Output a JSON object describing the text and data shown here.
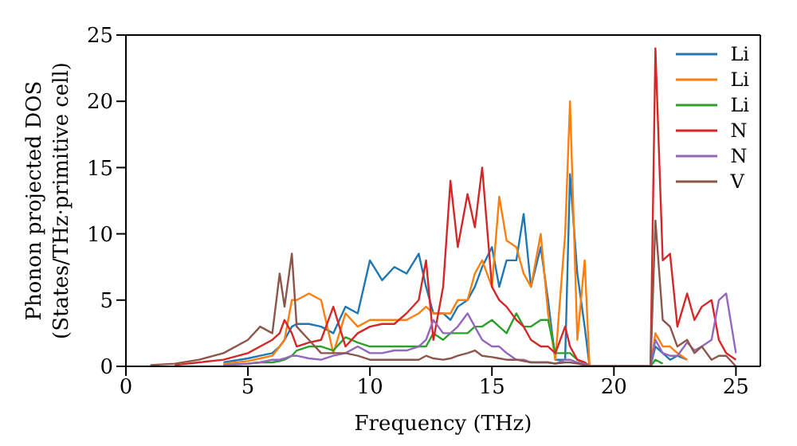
{
  "chart_data": {
    "type": "line",
    "xlabel": "Frequency (THz)",
    "ylabel": "Phonon projected DOS\n(States/THz·primitive cell)",
    "xlim": [
      0,
      26
    ],
    "xticks": [
      0,
      5,
      10,
      15,
      20,
      25
    ],
    "ylim": [
      0,
      25
    ],
    "yticks": [
      0,
      5,
      10,
      15,
      20,
      25
    ],
    "grid": false,
    "legend": "top right",
    "marker": "none",
    "line_style": "solid",
    "x": [
      1,
      2,
      3,
      4,
      5,
      5.5,
      6,
      6.3,
      6.5,
      6.8,
      7,
      7.5,
      8,
      8.5,
      9,
      9.5,
      10,
      10.5,
      11,
      11.5,
      12,
      12.3,
      12.6,
      13,
      13.3,
      13.6,
      14,
      14.3,
      14.6,
      15,
      15.3,
      15.6,
      16,
      16.3,
      16.6,
      17,
      17.3,
      17.6,
      18,
      18.2,
      18.5,
      18.8,
      19,
      21.5,
      21.7,
      22,
      22.3,
      22.6,
      23,
      23.3,
      23.6,
      24,
      24.3,
      24.6,
      25
    ],
    "series": [
      {
        "name": "Li",
        "color": "#1f77b4",
        "values": [
          null,
          null,
          null,
          0.3,
          0.6,
          0.8,
          1,
          1.5,
          2,
          3,
          3.2,
          3.2,
          3,
          2.5,
          4.5,
          4,
          8,
          6.5,
          7.5,
          7,
          8.5,
          6,
          4,
          4,
          3.5,
          4.5,
          5,
          6,
          7.5,
          9,
          6,
          8,
          8,
          11.5,
          6,
          9,
          5,
          0.5,
          0.5,
          14.5,
          7,
          3,
          0,
          0,
          1.5,
          1,
          0.5,
          0.8,
          0.5,
          null,
          null,
          null,
          null,
          null,
          null
        ]
      },
      {
        "name": "Li",
        "color": "#ff7f0e",
        "values": [
          null,
          null,
          null,
          0.2,
          0.4,
          0.6,
          0.8,
          1.5,
          2,
          5,
          5,
          5.5,
          5,
          1,
          4,
          3,
          3.5,
          3.5,
          3.5,
          3.5,
          4,
          4.5,
          4,
          4,
          4,
          5,
          5,
          7,
          8,
          6,
          12.8,
          9.5,
          9,
          7,
          6,
          10,
          4,
          0.5,
          10,
          20,
          2,
          8,
          0,
          0,
          2.5,
          1.5,
          1.5,
          1,
          0.5,
          null,
          null,
          null,
          null,
          null,
          null
        ]
      },
      {
        "name": "Li",
        "color": "#2ca02c",
        "values": [
          null,
          null,
          null,
          0.1,
          0.2,
          0.3,
          0.3,
          0.4,
          0.5,
          0.8,
          1.2,
          1.5,
          1.5,
          1.2,
          2.2,
          1.8,
          1.5,
          1.5,
          1.5,
          1.5,
          1.5,
          1.5,
          2.5,
          2,
          2.5,
          2.5,
          2.5,
          3,
          3,
          3.5,
          3,
          2.5,
          4,
          3,
          3,
          3.5,
          3.5,
          1,
          1,
          1,
          0.5,
          0.3,
          0,
          0,
          0.5,
          0.2,
          null,
          null,
          null,
          null,
          null,
          null,
          null,
          null,
          null
        ]
      },
      {
        "name": "N",
        "color": "#d62728",
        "values": [
          null,
          0.1,
          0.3,
          0.5,
          1,
          1.5,
          2,
          2.5,
          3.5,
          2.5,
          1.5,
          1.8,
          2,
          4.5,
          1.5,
          2.5,
          3,
          3.2,
          3.2,
          4,
          5,
          8,
          2,
          6,
          14,
          9,
          13,
          10.5,
          15,
          6,
          5,
          4.5,
          3.5,
          3,
          2,
          1.5,
          1.5,
          1,
          3,
          1.5,
          0.5,
          0.3,
          0,
          0,
          24,
          8,
          8.5,
          3,
          5.5,
          3.5,
          4.5,
          5,
          2,
          1,
          0.5
        ]
      },
      {
        "name": "N",
        "color": "#9467bd",
        "values": [
          null,
          null,
          null,
          0.1,
          0.2,
          0.3,
          0.5,
          0.5,
          0.6,
          0.8,
          0.8,
          0.6,
          0.5,
          0.8,
          1,
          1.5,
          1,
          1,
          1.2,
          1.2,
          1.5,
          2,
          3.5,
          2.5,
          2.5,
          3,
          4,
          3,
          2,
          1.5,
          1.5,
          1,
          0.5,
          0.5,
          0.3,
          0.3,
          0.3,
          0.2,
          0.5,
          0.5,
          0.3,
          0.2,
          0,
          0,
          2,
          1,
          0.8,
          0.8,
          1.8,
          1.2,
          1.5,
          2,
          5,
          5.5,
          1
        ]
      },
      {
        "name": "V",
        "color": "#8c564b",
        "values": [
          0.1,
          0.2,
          0.5,
          1,
          2,
          3,
          2.5,
          7,
          4.5,
          8.5,
          3,
          2,
          1,
          1,
          1,
          0.8,
          0.5,
          0.5,
          0.5,
          0.5,
          0.5,
          0.8,
          0.6,
          0.5,
          0.6,
          0.8,
          1,
          1.2,
          0.8,
          0.7,
          0.6,
          0.5,
          0.5,
          0.4,
          0.3,
          0.3,
          0.3,
          0.2,
          0.3,
          0.3,
          0.2,
          0.1,
          0,
          0,
          11,
          3.5,
          3,
          1.5,
          2,
          1,
          1.5,
          0.5,
          0.8,
          0.8,
          0
        ]
      }
    ]
  }
}
